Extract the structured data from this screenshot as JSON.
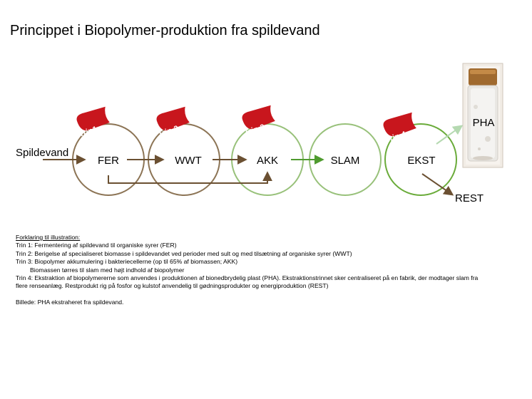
{
  "title": "Princippet i Biopolymer-produktion fra spildevand",
  "input_label": "Spildevand",
  "nodes": [
    {
      "id": "fer",
      "label": "FER",
      "color": "#8c7455"
    },
    {
      "id": "wwt",
      "label": "WWT",
      "color": "#8c7455"
    },
    {
      "id": "akk",
      "label": "AKK",
      "color": "#98c17a"
    },
    {
      "id": "slam",
      "label": "SLAM",
      "color": "#98c17a"
    },
    {
      "id": "ekst",
      "label": "EKST",
      "color": "#6aab3a"
    }
  ],
  "trin": [
    "Trin1",
    "Trin 2",
    "Trin 3",
    "Trin 4"
  ],
  "outputs": {
    "pha": "PHA",
    "rest": "REST"
  },
  "colors": {
    "badge": "#c8161d",
    "brown_arrow": "#6b5032",
    "green_arrow": "#4f9b2f",
    "light_arrow": "#b5d9b1"
  },
  "legend": {
    "heading": "Forklaring til illustration:",
    "trin1": "Trin 1: Fermentering af spildevand til organiske syrer (FER)",
    "trin2": "Trin 2: Berigelse af specialiseret biomasse i spildevandet ved perioder med sult og med tilsætning af organiske syrer (WWT)",
    "trin3": "Trin 3: Biopolymer akkumulering i bakteriecellerne (op til 65% af biomassen; AKK)",
    "trin3b": "Biomassen tørres til slam med højt indhold af biopolymer",
    "trin4": "Trin 4: Ekstraktion af biopolymererne som anvendes i produktionen af bionedbrydelig plast (PHA). Ekstraktionstrinnet sker centraliseret på en fabrik, der modtager slam fra flere renseanlæg. Restprodukt rig på fosfor og kulstof anvendelig til gødningsprodukter og energiproduktion (REST)",
    "caption": "Billede: PHA ekstraheret fra spildevand."
  }
}
